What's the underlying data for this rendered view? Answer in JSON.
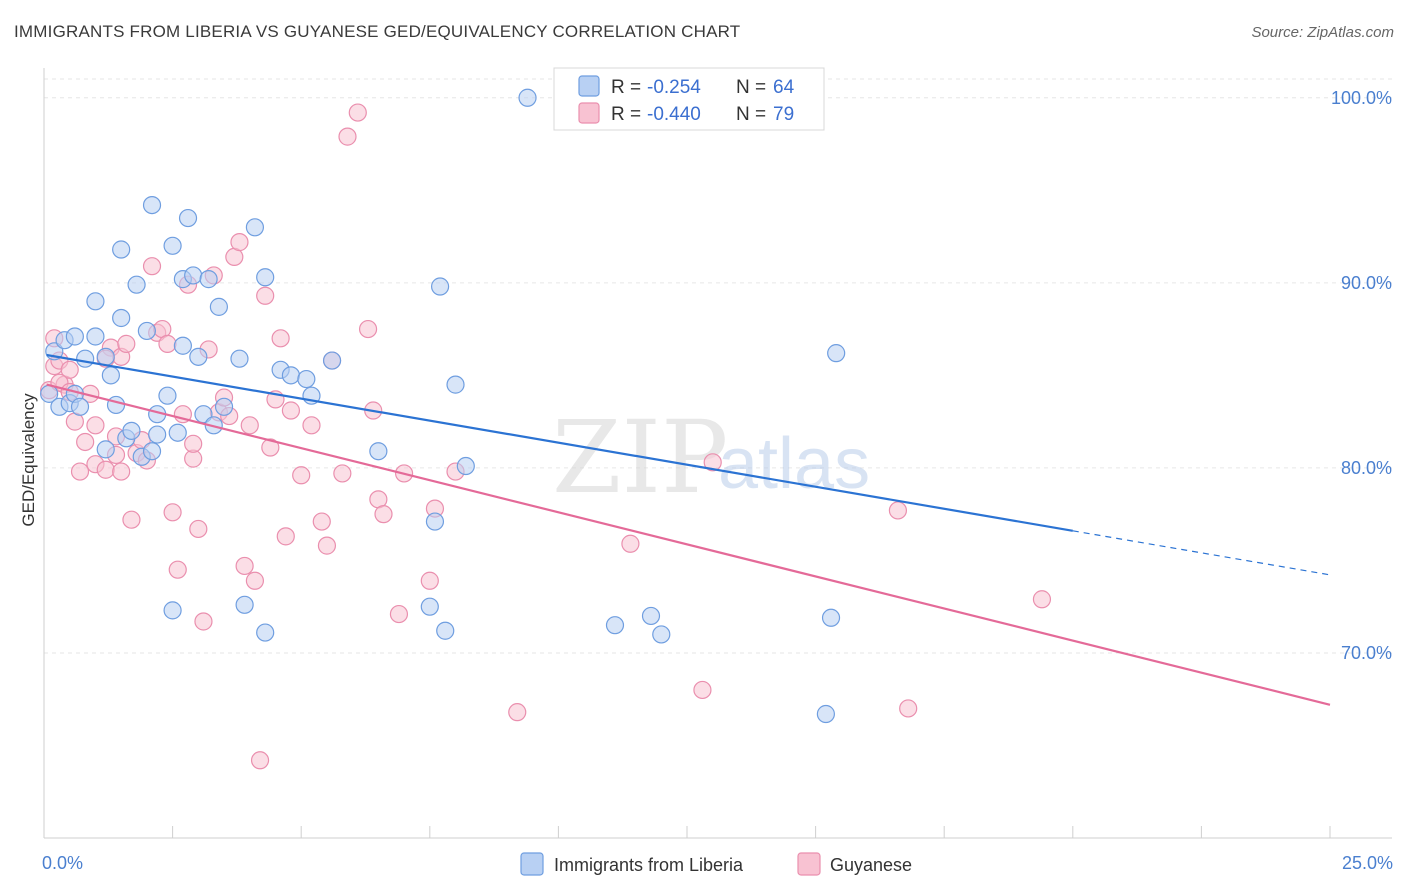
{
  "title": "IMMIGRANTS FROM LIBERIA VS GUYANESE GED/EQUIVALENCY CORRELATION CHART",
  "source": "Source: ZipAtlas.com",
  "colors": {
    "series_a_fill": "#b8d0f3",
    "series_a_stroke": "#6f9ee0",
    "series_a_line": "#2b73d3",
    "series_b_fill": "#f8c2d2",
    "series_b_stroke": "#ea8fae",
    "series_b_line": "#e46a98",
    "grid": "#e6e6e6",
    "axis_text": "#4a7fcf"
  },
  "legend": {
    "rows": [
      {
        "r_label": "R =",
        "r_value": "-0.254",
        "n_label": "N =",
        "n_value": "64"
      },
      {
        "r_label": "R =",
        "r_value": "-0.440",
        "n_label": "N =",
        "n_value": "79"
      }
    ]
  },
  "watermark": {
    "part1": "ZIP",
    "part2": "atlas"
  },
  "chart_data": {
    "type": "scatter",
    "xlabel": "",
    "ylabel": "GED/Equivalency",
    "xlim": [
      0,
      25
    ],
    "ylim": [
      60,
      101.5
    ],
    "x_tick_labels": [
      "0.0%",
      "25.0%"
    ],
    "y_ticks": [
      70,
      80,
      90,
      100
    ],
    "y_tick_labels": [
      "70.0%",
      "80.0%",
      "90.0%",
      "100.0%"
    ],
    "grid": true,
    "legend_position": "top-center",
    "series": [
      {
        "name": "Immigrants from Liberia",
        "trend": {
          "x": [
            0.05,
            20.0
          ],
          "y": [
            86.1,
            76.6
          ],
          "dashed_to_x": 25.0
        },
        "points": [
          [
            0.1,
            84.0
          ],
          [
            0.2,
            86.3
          ],
          [
            0.3,
            83.3
          ],
          [
            0.4,
            86.9
          ],
          [
            0.5,
            83.5
          ],
          [
            0.6,
            87.1
          ],
          [
            0.6,
            84.0
          ],
          [
            0.7,
            83.3
          ],
          [
            0.8,
            85.9
          ],
          [
            1.0,
            87.1
          ],
          [
            1.0,
            89.0
          ],
          [
            1.2,
            86.0
          ],
          [
            1.2,
            81.0
          ],
          [
            1.3,
            85.0
          ],
          [
            1.4,
            83.4
          ],
          [
            1.5,
            88.1
          ],
          [
            1.5,
            91.8
          ],
          [
            1.6,
            81.6
          ],
          [
            1.7,
            82.0
          ],
          [
            1.8,
            89.9
          ],
          [
            1.9,
            80.6
          ],
          [
            2.0,
            87.4
          ],
          [
            2.1,
            80.9
          ],
          [
            2.1,
            94.2
          ],
          [
            2.2,
            81.8
          ],
          [
            2.2,
            82.9
          ],
          [
            2.4,
            83.9
          ],
          [
            2.5,
            72.3
          ],
          [
            2.5,
            92.0
          ],
          [
            2.6,
            81.9
          ],
          [
            2.7,
            90.2
          ],
          [
            2.7,
            86.6
          ],
          [
            2.8,
            93.5
          ],
          [
            2.9,
            90.4
          ],
          [
            3.0,
            86.0
          ],
          [
            3.1,
            82.9
          ],
          [
            3.2,
            90.2
          ],
          [
            3.3,
            82.3
          ],
          [
            3.4,
            88.7
          ],
          [
            3.5,
            83.3
          ],
          [
            3.8,
            85.9
          ],
          [
            3.9,
            72.6
          ],
          [
            4.1,
            93.0
          ],
          [
            4.3,
            71.1
          ],
          [
            4.3,
            90.3
          ],
          [
            4.6,
            85.3
          ],
          [
            4.8,
            85.0
          ],
          [
            5.1,
            84.8
          ],
          [
            5.2,
            83.9
          ],
          [
            5.6,
            85.8
          ],
          [
            6.5,
            80.9
          ],
          [
            7.5,
            72.5
          ],
          [
            7.6,
            77.1
          ],
          [
            7.7,
            89.8
          ],
          [
            7.8,
            71.2
          ],
          [
            8.0,
            84.5
          ],
          [
            8.2,
            80.1
          ],
          [
            9.4,
            100.0
          ],
          [
            11.1,
            71.5
          ],
          [
            11.8,
            72.0
          ],
          [
            15.3,
            71.9
          ],
          [
            15.2,
            66.7
          ],
          [
            12.0,
            71.0
          ],
          [
            15.4,
            86.2
          ]
        ]
      },
      {
        "name": "Guyanese",
        "trend": {
          "x": [
            0.05,
            25.0
          ],
          "y": [
            84.5,
            67.2
          ]
        },
        "points": [
          [
            0.1,
            84.2
          ],
          [
            0.2,
            87.0
          ],
          [
            0.2,
            85.5
          ],
          [
            0.3,
            85.8
          ],
          [
            0.4,
            84.5
          ],
          [
            0.5,
            85.3
          ],
          [
            0.6,
            82.5
          ],
          [
            0.7,
            79.8
          ],
          [
            0.8,
            81.4
          ],
          [
            0.9,
            84.0
          ],
          [
            1.0,
            82.3
          ],
          [
            1.0,
            80.2
          ],
          [
            1.2,
            79.9
          ],
          [
            1.3,
            86.5
          ],
          [
            1.4,
            81.7
          ],
          [
            1.5,
            79.8
          ],
          [
            1.5,
            86.0
          ],
          [
            1.6,
            86.7
          ],
          [
            1.7,
            77.2
          ],
          [
            1.8,
            80.8
          ],
          [
            1.9,
            81.5
          ],
          [
            2.0,
            80.4
          ],
          [
            2.1,
            90.9
          ],
          [
            2.2,
            87.3
          ],
          [
            2.3,
            87.5
          ],
          [
            2.4,
            86.7
          ],
          [
            2.5,
            77.6
          ],
          [
            2.6,
            74.5
          ],
          [
            2.7,
            82.9
          ],
          [
            2.8,
            89.9
          ],
          [
            2.9,
            80.5
          ],
          [
            3.0,
            76.7
          ],
          [
            3.1,
            71.7
          ],
          [
            3.2,
            86.4
          ],
          [
            3.3,
            90.4
          ],
          [
            3.4,
            83.0
          ],
          [
            3.5,
            83.8
          ],
          [
            3.6,
            82.8
          ],
          [
            3.7,
            91.4
          ],
          [
            3.8,
            92.2
          ],
          [
            3.9,
            74.7
          ],
          [
            4.0,
            82.3
          ],
          [
            4.1,
            73.9
          ],
          [
            4.2,
            64.2
          ],
          [
            4.3,
            89.3
          ],
          [
            4.4,
            81.1
          ],
          [
            4.5,
            83.7
          ],
          [
            4.6,
            87.0
          ],
          [
            4.7,
            76.3
          ],
          [
            4.8,
            83.1
          ],
          [
            5.0,
            79.6
          ],
          [
            5.2,
            82.3
          ],
          [
            5.4,
            77.1
          ],
          [
            5.5,
            75.8
          ],
          [
            5.6,
            85.8
          ],
          [
            5.8,
            79.7
          ],
          [
            5.9,
            97.9
          ],
          [
            6.1,
            99.2
          ],
          [
            6.3,
            87.5
          ],
          [
            6.4,
            83.1
          ],
          [
            6.5,
            78.3
          ],
          [
            6.6,
            77.5
          ],
          [
            6.9,
            72.1
          ],
          [
            7.0,
            79.7
          ],
          [
            7.5,
            73.9
          ],
          [
            7.6,
            77.8
          ],
          [
            8.0,
            79.8
          ],
          [
            9.2,
            66.8
          ],
          [
            11.4,
            75.9
          ],
          [
            12.8,
            68.0
          ],
          [
            13.0,
            80.3
          ],
          [
            16.6,
            77.7
          ],
          [
            16.8,
            67.0
          ],
          [
            19.4,
            72.9
          ],
          [
            1.2,
            85.9
          ],
          [
            0.3,
            84.6
          ],
          [
            0.5,
            84.1
          ],
          [
            1.4,
            80.7
          ],
          [
            2.9,
            81.3
          ]
        ]
      }
    ]
  }
}
